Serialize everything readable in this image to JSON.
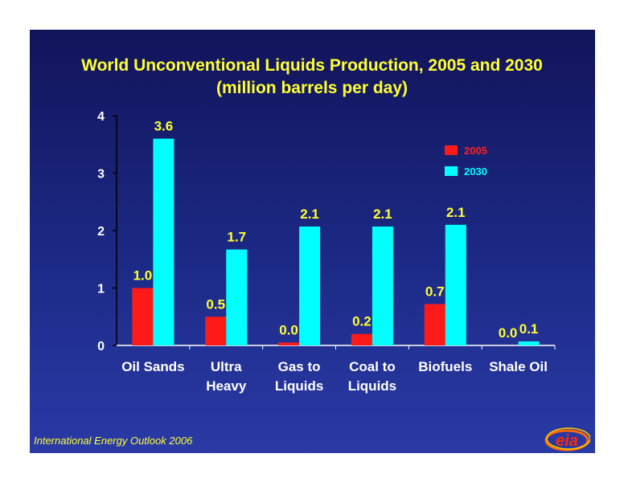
{
  "title_line1": "World Unconventional Liquids Production, 2005 and 2030",
  "title_line2": "(million barrels per day)",
  "footer": "International Energy Outlook 2006",
  "logo_text": "eia",
  "colors": {
    "series_2005": "#ff1a1a",
    "series_2030": "#00ffff",
    "text": "#ffff33",
    "legend_2005": "#ff2020",
    "legend_2030": "#00ffff"
  },
  "chart_data": {
    "type": "bar",
    "title": "World Unconventional Liquids Production, 2005 and 2030",
    "subtitle": "(million barrels per day)",
    "categories": [
      [
        "Oil Sands"
      ],
      [
        "Ultra",
        "Heavy"
      ],
      [
        "Gas to",
        "Liquids"
      ],
      [
        "Coal to",
        "Liquids"
      ],
      [
        "Biofuels"
      ],
      [
        "Shale Oil"
      ]
    ],
    "series": [
      {
        "name": "2005",
        "values": [
          1.0,
          0.5,
          0.05,
          0.2,
          0.72,
          0.0
        ],
        "labels": [
          "1.0",
          "0.5",
          "0.0",
          "0.2",
          "0.7",
          "0.0"
        ]
      },
      {
        "name": "2030",
        "values": [
          3.6,
          1.67,
          2.07,
          2.07,
          2.1,
          0.07
        ],
        "labels": [
          "3.6",
          "1.7",
          "2.1",
          "2.1",
          "2.1",
          "0.1"
        ]
      }
    ],
    "ylim": [
      0,
      4
    ],
    "yticks": [
      0,
      1,
      2,
      3,
      4
    ],
    "legend_position": "top-right",
    "grid": false
  }
}
